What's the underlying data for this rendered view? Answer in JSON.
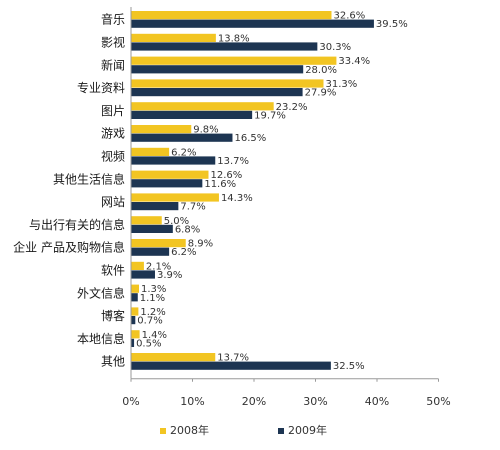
{
  "chart_data": {
    "type": "bar",
    "orientation": "horizontal",
    "categories": [
      "音乐",
      "影视",
      "新闻",
      "专业资料",
      "图片",
      "游戏",
      "视频",
      "其他生活信息",
      "网站",
      "与出行有关的信息",
      "企业 产品及购物信息",
      "软件",
      "外文信息",
      "博客",
      "本地信息",
      "其他"
    ],
    "series": [
      {
        "name": "2008年",
        "color": "#f2c522",
        "values": [
          32.6,
          13.8,
          33.4,
          31.3,
          23.2,
          9.8,
          6.2,
          12.6,
          14.3,
          5.0,
          8.9,
          2.1,
          1.3,
          1.2,
          1.4,
          13.7
        ],
        "labels": [
          "32.6%",
          "13.8%",
          "33.4%",
          "31.3%",
          "23.2%",
          "9.8%",
          "6.2%",
          "12.6%",
          "14.3%",
          "5.0%",
          "8.9%",
          "2.1%",
          "1.3%",
          "1.2%",
          "1.4%",
          "13.7%"
        ]
      },
      {
        "name": "2009年",
        "color": "#1d3552",
        "values": [
          39.5,
          30.3,
          28.0,
          27.9,
          19.7,
          16.5,
          13.7,
          11.6,
          7.7,
          6.8,
          6.2,
          3.9,
          1.1,
          0.7,
          0.5,
          32.5
        ],
        "labels": [
          "39.5%",
          "30.3%",
          "28.0%",
          "27.9%",
          "19.7%",
          "16.5%",
          "13.7%",
          "11.6%",
          "7.7%",
          "6.8%",
          "6.2%",
          "3.9%",
          "1.1%",
          "0.7%",
          "0.5%",
          "32.5%"
        ]
      }
    ],
    "x_ticks": [
      "0%",
      "10%",
      "20%",
      "30%",
      "40%",
      "50%"
    ],
    "xlim": [
      0,
      50
    ],
    "legend": "bottom",
    "grid": false
  }
}
